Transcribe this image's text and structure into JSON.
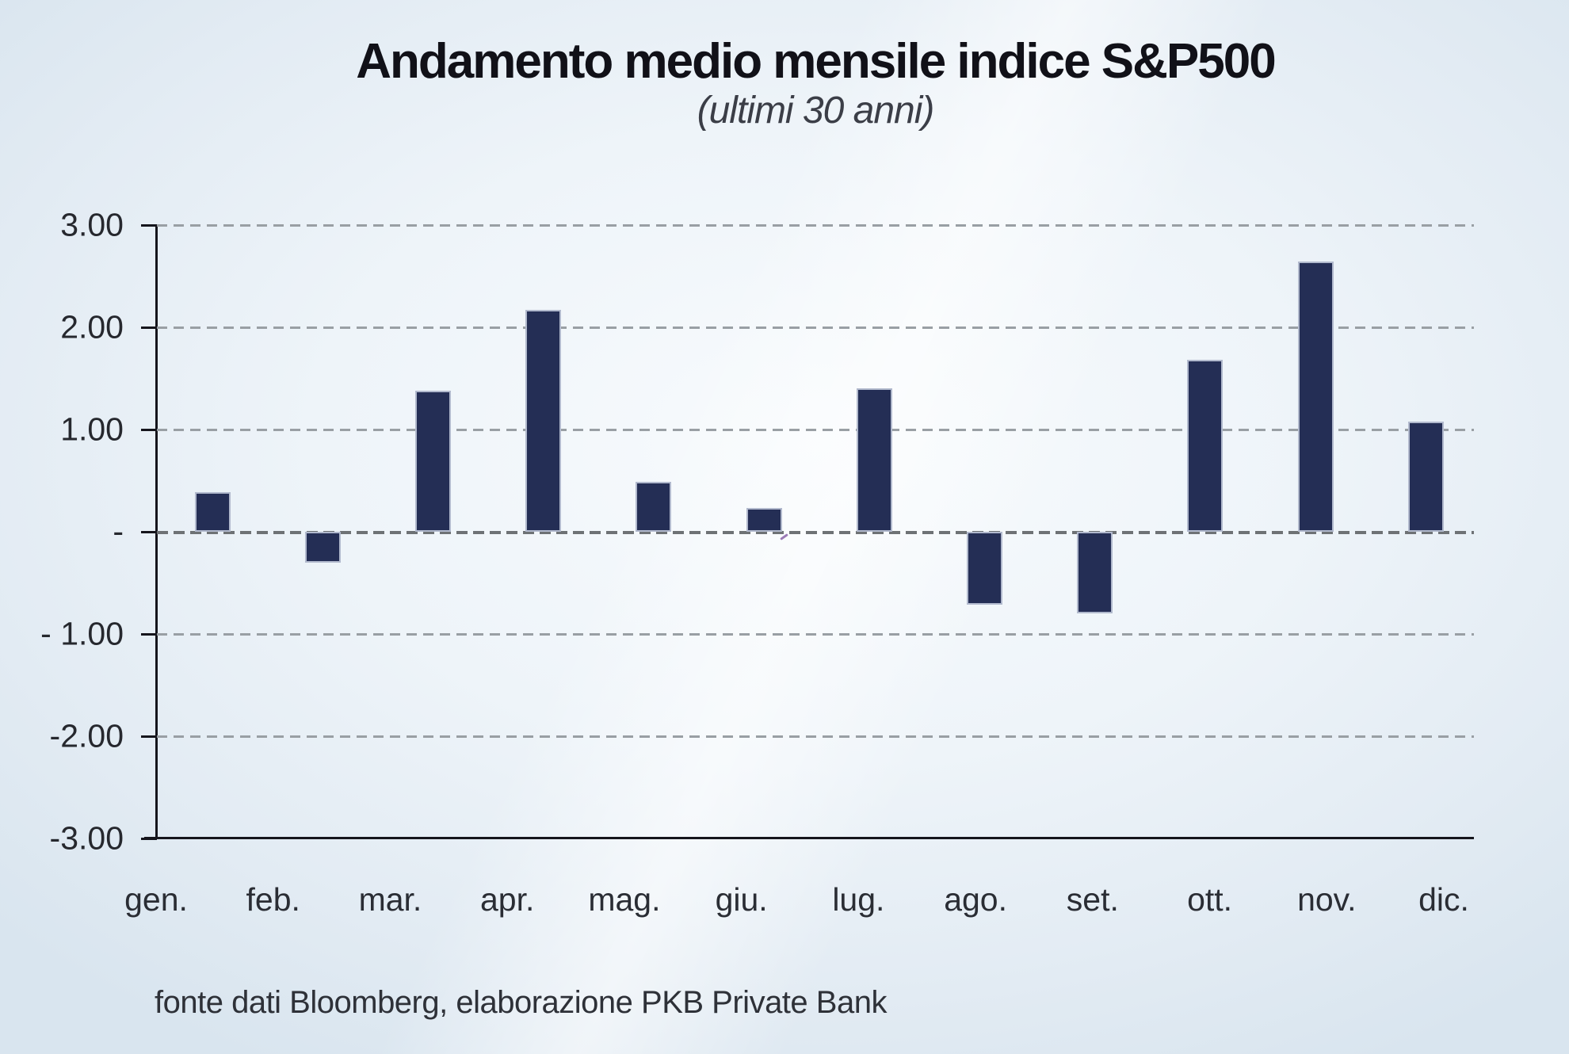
{
  "header": {
    "title": "Andamento medio mensile indice S&P500",
    "subtitle": "(ultimi 30 anni)"
  },
  "footer": {
    "source_note": "fonte dati Bloomberg, elaborazione PKB Private Bank"
  },
  "chart_data": {
    "type": "bar",
    "title": "Andamento medio mensile indice S&P500",
    "subtitle": "(ultimi 30 anni)",
    "categories": [
      "gen.",
      "feb.",
      "mar.",
      "apr.",
      "mag.",
      "giu.",
      "lug.",
      "ago.",
      "set.",
      "ott.",
      "nov.",
      "dic."
    ],
    "values": [
      0.39,
      -0.3,
      1.38,
      2.17,
      0.49,
      0.23,
      1.4,
      -0.71,
      -0.8,
      1.68,
      2.64,
      1.08
    ],
    "xlabel": "",
    "ylabel": "",
    "ylim": [
      -3,
      3
    ],
    "ytick_values": [
      3,
      2,
      1,
      0,
      -1,
      -2,
      -3
    ],
    "ytick_labels": [
      "3.00",
      "2.00",
      "1.00",
      "-",
      "- 1.00",
      "-2.00",
      "-3.00"
    ],
    "grid": "horizontal-dashed",
    "legend": "none",
    "bar_color": "#242e55",
    "bar_border_color": "#b1b9cd",
    "gridline_color": "#999fa4",
    "axis_color": "#15151c",
    "background_color": "#e6eef5"
  }
}
